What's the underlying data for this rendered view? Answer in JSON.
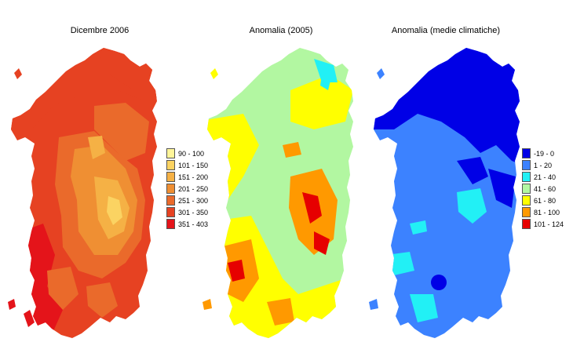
{
  "panels": [
    {
      "title": "Dicembre 2006",
      "legend": [
        {
          "label": "90 - 100",
          "color": "#fff599"
        },
        {
          "label": "101 - 150",
          "color": "#fbd362"
        },
        {
          "label": "151 - 200",
          "color": "#f5b145"
        },
        {
          "label": "201 - 250",
          "color": "#ef8f33"
        },
        {
          "label": "251 - 300",
          "color": "#ea6a2b"
        },
        {
          "label": "301 - 350",
          "color": "#e64222"
        },
        {
          "label": "351 - 403",
          "color": "#e4141a"
        }
      ]
    },
    {
      "title": "Anomalia (2005)",
      "legend": []
    },
    {
      "title": "Anomalia (medie climatiche)",
      "legend": [
        {
          "label": "-19 - 0",
          "color": "#0000e6"
        },
        {
          "label": "1 - 20",
          "color": "#3c82ff"
        },
        {
          "label": "21 - 40",
          "color": "#22f0f5"
        },
        {
          "label": "41 - 60",
          "color": "#b2f7a1"
        },
        {
          "label": "61 - 80",
          "color": "#ffff00"
        },
        {
          "label": "81 - 100",
          "color": "#ff9900"
        },
        {
          "label": "101 - 124",
          "color": "#e60000"
        }
      ]
    }
  ]
}
